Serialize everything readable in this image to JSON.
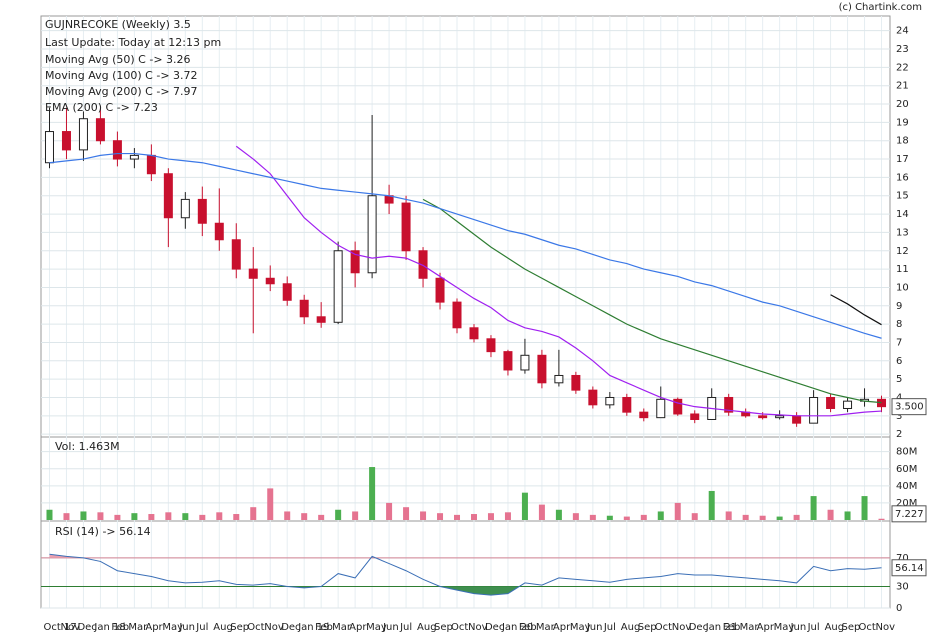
{
  "chart_data": {
    "type": "candlestick",
    "source": "(c) Chartink.com",
    "title": "GUJNRECOKE (Weekly) 3.5",
    "subtitle": "Last Update: Today at 12:13 pm",
    "categories": [
      "Oct 17",
      "Nov",
      "Dec",
      "Jan 18",
      "Feb",
      "Mar",
      "Apr",
      "May",
      "Jun",
      "Jul",
      "Aug",
      "Sep",
      "Oct",
      "Nov",
      "Dec",
      "Jan 19",
      "Feb",
      "Mar",
      "Apr",
      "May",
      "Jun",
      "Jul",
      "Aug",
      "Sep",
      "Oct",
      "Nov",
      "Dec",
      "Jan 20",
      "Feb",
      "Mar",
      "Apr",
      "May",
      "Jun",
      "Jul",
      "Aug",
      "Sep",
      "Oct",
      "Nov",
      "Dec",
      "Jan 21",
      "Feb",
      "Mar",
      "Apr",
      "May",
      "Jun",
      "Jul",
      "Aug",
      "Sep",
      "Oct",
      "Nov"
    ],
    "ohlc": [
      [
        16.8,
        19.8,
        16.5,
        18.5
      ],
      [
        18.5,
        19.8,
        17.0,
        17.5
      ],
      [
        17.5,
        19.6,
        16.9,
        19.2
      ],
      [
        19.2,
        19.8,
        17.8,
        18.0
      ],
      [
        18.0,
        18.5,
        16.6,
        17.0
      ],
      [
        17.0,
        17.6,
        16.5,
        17.2
      ],
      [
        17.2,
        17.8,
        15.8,
        16.2
      ],
      [
        16.2,
        16.5,
        12.2,
        13.8
      ],
      [
        13.8,
        15.2,
        13.2,
        14.8
      ],
      [
        14.8,
        15.5,
        12.8,
        13.5
      ],
      [
        13.5,
        15.4,
        12.0,
        12.6
      ],
      [
        12.6,
        13.5,
        10.5,
        11.0
      ],
      [
        11.0,
        12.2,
        7.5,
        10.5
      ],
      [
        10.5,
        11.2,
        9.8,
        10.2
      ],
      [
        10.2,
        10.6,
        9.0,
        9.3
      ],
      [
        9.3,
        9.6,
        8.0,
        8.4
      ],
      [
        8.4,
        9.2,
        7.8,
        8.1
      ],
      [
        8.1,
        12.5,
        8.0,
        12.0
      ],
      [
        12.0,
        12.5,
        10.0,
        10.8
      ],
      [
        10.8,
        19.4,
        10.5,
        15.0
      ],
      [
        15.0,
        15.6,
        14.0,
        14.6
      ],
      [
        14.6,
        15.0,
        11.5,
        12.0
      ],
      [
        12.0,
        12.2,
        10.0,
        10.5
      ],
      [
        10.5,
        10.8,
        8.8,
        9.2
      ],
      [
        9.2,
        9.4,
        7.5,
        7.8
      ],
      [
        7.8,
        8.0,
        7.0,
        7.2
      ],
      [
        7.2,
        7.4,
        6.2,
        6.5
      ],
      [
        6.5,
        6.6,
        5.2,
        5.5
      ],
      [
        5.5,
        7.2,
        5.3,
        6.3
      ],
      [
        6.3,
        6.6,
        4.5,
        4.8
      ],
      [
        4.8,
        6.6,
        4.6,
        5.2
      ],
      [
        5.2,
        5.4,
        4.2,
        4.4
      ],
      [
        4.4,
        4.6,
        3.4,
        3.6
      ],
      [
        3.6,
        4.3,
        3.4,
        4.0
      ],
      [
        4.0,
        4.2,
        3.0,
        3.2
      ],
      [
        3.2,
        3.4,
        2.7,
        2.9
      ],
      [
        2.9,
        4.6,
        2.9,
        3.9
      ],
      [
        3.9,
        4.0,
        3.0,
        3.1
      ],
      [
        3.1,
        3.3,
        2.6,
        2.8
      ],
      [
        2.8,
        4.5,
        2.8,
        4.0
      ],
      [
        4.0,
        4.2,
        3.0,
        3.2
      ],
      [
        3.2,
        3.4,
        2.9,
        3.0
      ],
      [
        3.0,
        3.2,
        2.8,
        2.9
      ],
      [
        2.9,
        3.3,
        2.8,
        3.0
      ],
      [
        3.0,
        3.2,
        2.4,
        2.6
      ],
      [
        2.6,
        4.4,
        2.6,
        4.0
      ],
      [
        4.0,
        4.2,
        3.2,
        3.4
      ],
      [
        3.4,
        4.0,
        3.2,
        3.8
      ],
      [
        3.8,
        4.5,
        3.5,
        3.9
      ],
      [
        3.9,
        4.1,
        3.2,
        3.5
      ]
    ],
    "up_color": "#ffffff",
    "down_color": "#c8102e",
    "series": [
      {
        "name": "Moving Avg (50) C -> 3.26",
        "color": "#a020f0",
        "values": [
          null,
          null,
          null,
          null,
          null,
          null,
          null,
          null,
          null,
          null,
          null,
          17.7,
          17.0,
          16.2,
          15.0,
          13.8,
          13.0,
          12.3,
          11.8,
          11.6,
          11.7,
          11.6,
          11.2,
          10.6,
          10.0,
          9.4,
          8.9,
          8.2,
          7.8,
          7.6,
          7.3,
          6.7,
          6.0,
          5.2,
          4.8,
          4.4,
          4.0,
          3.7,
          3.5,
          3.4,
          3.3,
          3.2,
          3.1,
          3.05,
          3.0,
          3.0,
          3.0,
          3.1,
          3.2,
          3.26
        ]
      },
      {
        "name": "Moving Avg (100) C -> 3.72",
        "color": "#2e7d32",
        "values": [
          null,
          null,
          null,
          null,
          null,
          null,
          null,
          null,
          null,
          null,
          null,
          null,
          null,
          null,
          null,
          null,
          null,
          null,
          null,
          null,
          null,
          null,
          14.8,
          14.3,
          13.6,
          12.9,
          12.2,
          11.6,
          11.0,
          10.5,
          10.0,
          9.5,
          9.0,
          8.5,
          8.0,
          7.6,
          7.2,
          6.9,
          6.6,
          6.3,
          6.0,
          5.7,
          5.4,
          5.1,
          4.8,
          4.5,
          4.2,
          4.0,
          3.8,
          3.72
        ]
      },
      {
        "name": "Moving Avg (200) C -> 7.97",
        "color": "#111111",
        "values": [
          null,
          null,
          null,
          null,
          null,
          null,
          null,
          null,
          null,
          null,
          null,
          null,
          null,
          null,
          null,
          null,
          null,
          null,
          null,
          null,
          null,
          null,
          null,
          null,
          null,
          null,
          null,
          null,
          null,
          null,
          null,
          null,
          null,
          null,
          null,
          null,
          null,
          null,
          null,
          null,
          null,
          null,
          null,
          null,
          null,
          null,
          9.6,
          9.1,
          8.5,
          7.97
        ]
      },
      {
        "name": "EMA (200) C -> 7.23",
        "color": "#3b78e7",
        "values": [
          16.8,
          16.9,
          17.0,
          17.2,
          17.3,
          17.3,
          17.2,
          17.0,
          16.9,
          16.8,
          16.6,
          16.4,
          16.2,
          16.0,
          15.8,
          15.6,
          15.4,
          15.3,
          15.2,
          15.1,
          15.0,
          14.8,
          14.6,
          14.3,
          14.0,
          13.7,
          13.4,
          13.1,
          12.9,
          12.6,
          12.3,
          12.1,
          11.8,
          11.5,
          11.3,
          11.0,
          10.8,
          10.6,
          10.3,
          10.1,
          9.8,
          9.5,
          9.2,
          9.0,
          8.7,
          8.4,
          8.1,
          7.8,
          7.5,
          7.23
        ]
      }
    ],
    "ylim": [
      1.9,
      24.8
    ],
    "yticks": [
      2,
      3,
      4,
      5,
      6,
      7,
      8,
      9,
      10,
      11,
      12,
      13,
      14,
      15,
      16,
      17,
      18,
      19,
      20,
      21,
      22,
      23,
      24
    ],
    "last_value": {
      "value": 3.5,
      "label": "3.500"
    },
    "grid": true,
    "volume": {
      "title": "Vol: 1.463M",
      "up_color": "#4caf50",
      "down_color": "#e57390",
      "values": [
        12,
        8,
        10,
        9,
        6,
        8,
        7,
        9,
        8,
        6,
        9,
        7,
        15,
        37,
        10,
        8,
        6,
        12,
        10,
        62,
        20,
        15,
        10,
        8,
        6,
        7,
        8,
        9,
        32,
        18,
        12,
        8,
        6,
        5,
        4,
        6,
        10,
        20,
        8,
        34,
        10,
        6,
        5,
        4,
        6,
        28,
        12,
        10,
        28,
        1.463
      ],
      "ylim": [
        0,
        96
      ],
      "yticks": [
        {
          "value": 20,
          "label": "20M"
        },
        {
          "value": 40,
          "label": "40M"
        },
        {
          "value": 60,
          "label": "60M"
        },
        {
          "value": 80,
          "label": "80M"
        }
      ],
      "marker": {
        "value": 7.227,
        "label": "7.227"
      }
    },
    "rsi": {
      "title": "RSI (14) -> 56.14",
      "color": "#3b6fb6",
      "values": [
        75,
        72,
        70,
        65,
        52,
        48,
        44,
        38,
        35,
        36,
        38,
        33,
        32,
        34,
        30,
        28,
        30,
        48,
        42,
        72,
        62,
        52,
        40,
        30,
        25,
        20,
        18,
        20,
        35,
        32,
        42,
        40,
        38,
        36,
        40,
        42,
        44,
        48,
        46,
        46,
        44,
        42,
        40,
        38,
        35,
        58,
        52,
        55,
        54,
        56.14
      ],
      "ylim": [
        0,
        120
      ],
      "yticks": [
        0,
        30,
        70
      ],
      "overbought": 70,
      "oversold": 30,
      "last": {
        "value": 56.14,
        "label": "56.14"
      }
    }
  }
}
